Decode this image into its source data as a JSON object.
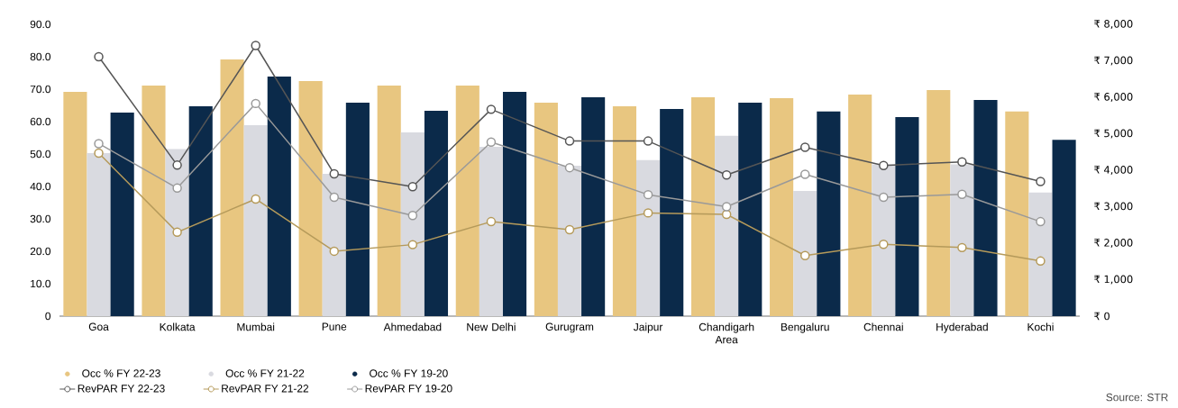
{
  "chart_data": {
    "type": "bar",
    "categories": [
      "Goa",
      "Kolkata",
      "Mumbai",
      "Pune",
      "Ahmedabad",
      "New Delhi",
      "Gurugram",
      "Jaipur",
      "Chandigarh Area",
      "Bengaluru",
      "Chennai",
      "Hyderabad",
      "Kochi"
    ],
    "series": [
      {
        "name": "Occ % FY 22-23",
        "color": "#e8c680",
        "values": [
          69.2,
          71.1,
          79.2,
          72.5,
          71.1,
          71.1,
          65.8,
          64.7,
          67.5,
          67.2,
          68.3,
          69.7,
          63.1
        ]
      },
      {
        "name": "Occ % FY 21-22",
        "color": "#d9dae0",
        "values": [
          50.3,
          51.5,
          58.9,
          43.9,
          56.7,
          52.2,
          46.4,
          48.1,
          55.6,
          38.6,
          46.8,
          46.8,
          38.1
        ]
      },
      {
        "name": "Occ % FY 19-20",
        "color": "#0b2a4a",
        "values": [
          62.8,
          64.7,
          73.9,
          65.8,
          63.3,
          69.2,
          67.5,
          63.9,
          65.8,
          63.1,
          61.4,
          66.7,
          54.4
        ]
      },
      {
        "name": "RevPAR FY 22-23",
        "color": "#555555",
        "type": "line",
        "axis": "y2",
        "values": [
          7110,
          4140,
          7420,
          3900,
          3550,
          5670,
          4800,
          4800,
          3870,
          4630,
          4130,
          4230,
          3690
        ]
      },
      {
        "name": "RevPAR FY 21-22",
        "color": "#b59a5a",
        "type": "line",
        "axis": "y2",
        "values": [
          4470,
          2300,
          3210,
          1780,
          1960,
          2590,
          2370,
          2830,
          2790,
          1660,
          1970,
          1880,
          1510
        ]
      },
      {
        "name": "RevPAR FY 19-20",
        "color": "#999999",
        "type": "line",
        "axis": "y2",
        "values": [
          4730,
          3510,
          5830,
          3260,
          2760,
          4770,
          4070,
          3330,
          3000,
          3890,
          3260,
          3340,
          2590
        ]
      }
    ],
    "ylim": [
      0,
      90
    ],
    "yticks": [
      0,
      {
        "value": 10,
        "label": "10.0"
      },
      {
        "value": 20,
        "label": "20.0"
      },
      {
        "value": 30,
        "label": "30.0"
      },
      {
        "value": 40,
        "label": "40.0"
      },
      {
        "value": 50,
        "label": "50.0"
      },
      {
        "value": 60,
        "label": "60.0"
      },
      {
        "value": 70,
        "label": "70.0"
      },
      {
        "value": 80,
        "label": "80.0"
      },
      {
        "value": 90,
        "label": "90.0"
      }
    ],
    "y2lim": [
      0,
      8000
    ],
    "y2ticks": [
      {
        "value": 0,
        "label": "₹ 0"
      },
      {
        "value": 1000,
        "label": "₹ 1,000"
      },
      {
        "value": 2000,
        "label": "₹ 2,000"
      },
      {
        "value": 3000,
        "label": "₹ 3,000"
      },
      {
        "value": 4000,
        "label": "₹ 4,000"
      },
      {
        "value": 5000,
        "label": "₹ 5,000"
      },
      {
        "value": 6000,
        "label": "₹ 6,000"
      },
      {
        "value": 7000,
        "label": "₹ 7,000"
      },
      {
        "value": 8000,
        "label": "₹ 8,000"
      }
    ],
    "marker": "circle",
    "legend": "bottom left",
    "annotations": [
      "Source: STR"
    ]
  }
}
